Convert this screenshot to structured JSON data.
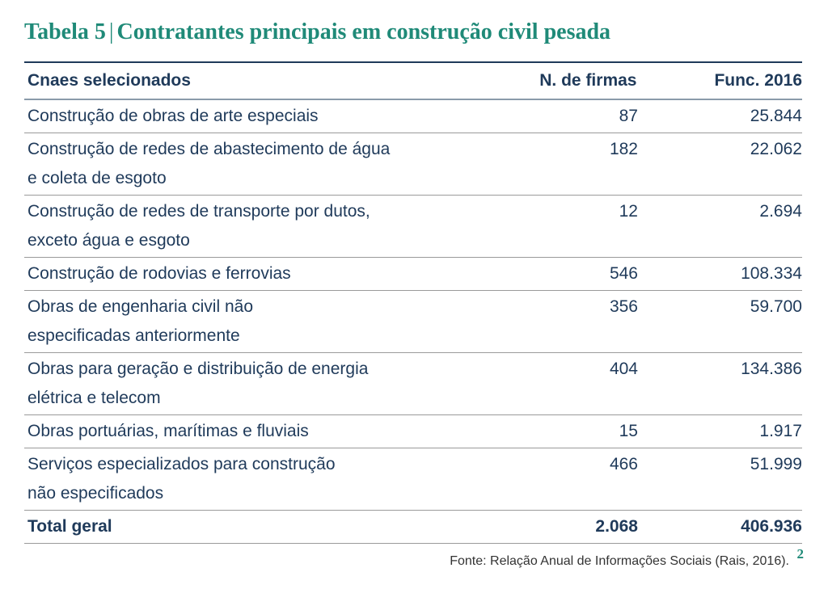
{
  "title": {
    "label": "Tabela 5",
    "separator": "|",
    "text": "Contratantes principais em construção civil pesada"
  },
  "table": {
    "headers": [
      "Cnaes selecionados",
      "N. de firmas",
      "Func. 2016"
    ],
    "rows": [
      {
        "lines": [
          "Construção de obras de arte especiais"
        ],
        "firmas": "87",
        "func": "25.844"
      },
      {
        "lines": [
          "Construção de redes de abastecimento de água",
          "e coleta de esgoto"
        ],
        "firmas": "182",
        "func": "22.062"
      },
      {
        "lines": [
          "Construção de redes de transporte por dutos,",
          "exceto água e esgoto"
        ],
        "firmas": "12",
        "func": "2.694"
      },
      {
        "lines": [
          "Construção de rodovias e ferrovias"
        ],
        "firmas": "546",
        "func": "108.334"
      },
      {
        "lines": [
          "Obras de engenharia civil não",
          "especificadas anteriormente"
        ],
        "firmas": "356",
        "func": "59.700"
      },
      {
        "lines": [
          "Obras para geração e distribuição de energia",
          "elétrica e telecom"
        ],
        "firmas": "404",
        "func": "134.386"
      },
      {
        "lines": [
          "Obras portuárias, marítimas e fluviais"
        ],
        "firmas": "15",
        "func": "1.917"
      },
      {
        "lines": [
          "Serviços especializados para construção",
          "não especificados"
        ],
        "firmas": "466",
        "func": "51.999"
      }
    ],
    "total": {
      "label": "Total geral",
      "firmas": "2.068",
      "func": "406.936"
    }
  },
  "source": "Fonte: Relação Anual de Informações Sociais (Rais, 2016).",
  "page_number": "2",
  "colors": {
    "title": "#1f8a78",
    "text": "#1f3a5a",
    "rule": "#9a9a9a"
  }
}
